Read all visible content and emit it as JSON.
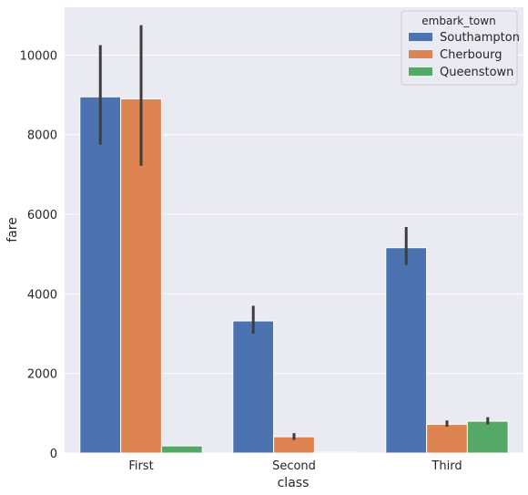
{
  "chart_data": {
    "type": "bar",
    "categories": [
      "First",
      "Second",
      "Third"
    ],
    "xlabel": "class",
    "ylabel": "fare",
    "ylim": [
      0,
      11200
    ],
    "yticks": [
      0,
      2000,
      4000,
      6000,
      8000,
      10000
    ],
    "grid": true,
    "legend": {
      "title": "embark_town",
      "placement": "top-right"
    },
    "series": [
      {
        "name": "Southampton",
        "color": "#4c72b0",
        "values": [
          8950,
          3320,
          5160
        ],
        "error_low": [
          7750,
          3000,
          4730
        ],
        "error_high": [
          10250,
          3700,
          5680
        ]
      },
      {
        "name": "Cherbourg",
        "color": "#dd8452",
        "values": [
          8900,
          410,
          720
        ],
        "error_low": [
          7220,
          330,
          660
        ],
        "error_high": [
          10750,
          500,
          820
        ]
      },
      {
        "name": "Queenstown",
        "color": "#55a868",
        "values": [
          180,
          25,
          800
        ],
        "error_low": [
          180,
          25,
          720
        ],
        "error_high": [
          180,
          25,
          900
        ]
      }
    ]
  }
}
